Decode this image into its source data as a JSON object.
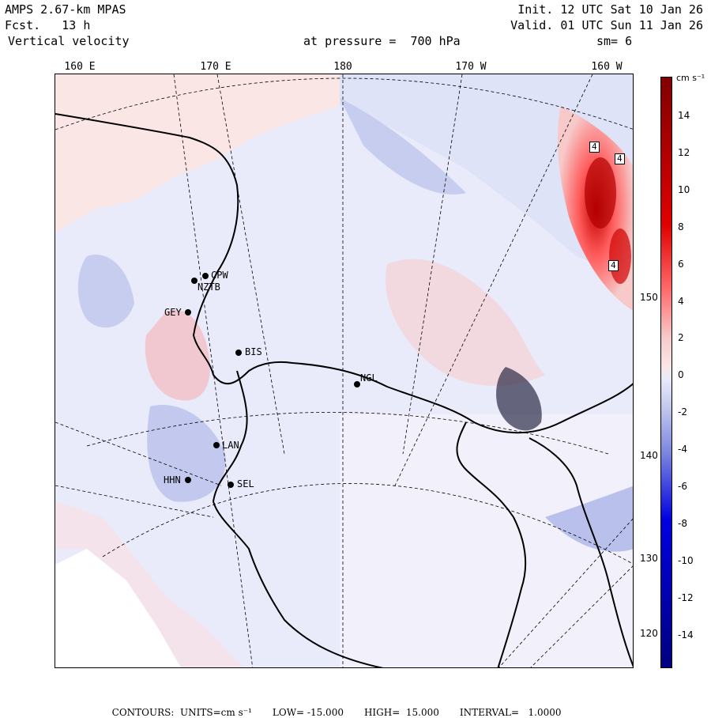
{
  "header": {
    "model": "AMPS 2.67-km MPAS",
    "forecast": "Fcst.   13 h",
    "field": "Vertical velocity",
    "init": "Init. 12 UTC Sat 10 Jan 26",
    "valid": "Valid. 01 UTC Sun 11 Jan 26",
    "level": "at pressure =  700 hPa",
    "smoothing": "sm= 6"
  },
  "longitude_labels": [
    "160 E",
    "170 E",
    "180",
    "170 W",
    "160 W"
  ],
  "latitude_labels": [
    "150 W",
    "140 W",
    "130 W",
    "120 W"
  ],
  "stations": [
    {
      "id": "CPW"
    },
    {
      "id": "NZTB"
    },
    {
      "id": "GEY"
    },
    {
      "id": "BIS"
    },
    {
      "id": "NGL"
    },
    {
      "id": "LAN"
    },
    {
      "id": "HHN"
    },
    {
      "id": "SEL"
    }
  ],
  "contour_labels": [
    "4",
    "4",
    "4"
  ],
  "colorbar": {
    "unit": "cm s⁻¹",
    "ticks": [
      "14",
      "12",
      "10",
      "8",
      "6",
      "4",
      "2",
      "0",
      "-2",
      "-4",
      "-6",
      "-8",
      "-10",
      "-12",
      "-14"
    ],
    "colors": {
      "max": "#800000",
      "strong_pos": "#e00000",
      "mid_pos": "#ff6b6b",
      "weak_pos": "#f7c9c9",
      "near_zero_pos": "#fbe6e6",
      "near_zero_neg": "#e9ebfa",
      "weak_neg": "#c2c8ee",
      "mid_neg": "#7883dc",
      "strong_neg": "#0000e0",
      "min": "#000080"
    }
  },
  "footer": {
    "contours": "CONTOURS:  UNITS=cm s⁻¹",
    "low": "LOW= -15.000",
    "high": "HIGH=  15.000",
    "interval": "INTERVAL=   1.0000"
  }
}
